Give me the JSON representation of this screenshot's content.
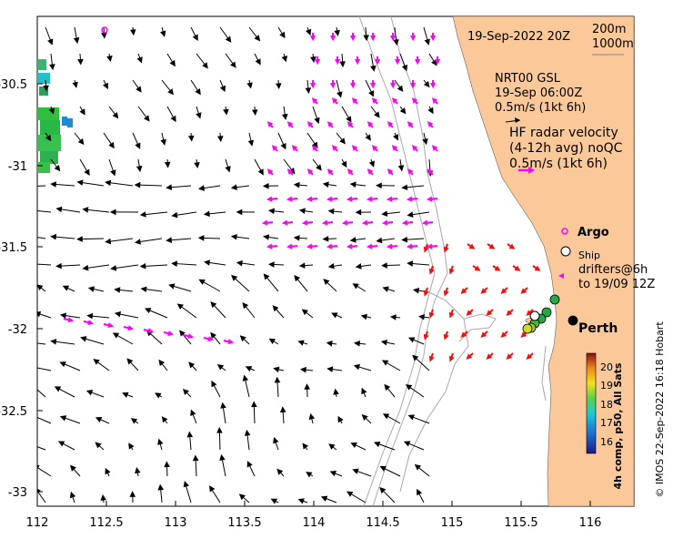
{
  "map": {
    "date_title": "19-Sep-2022 20Z",
    "isobaths": [
      "200m",
      "1000m"
    ],
    "model": {
      "name": "NRT00 GSL",
      "time": "19-Sep 06:00Z",
      "scale": "0.5m/s (1kt 6h)"
    },
    "hf_radar": {
      "title": "HF radar velocity",
      "subtitle": "(4-12h avg) noQC",
      "scale": "0.5m/s (1kt 6h)"
    },
    "markers": {
      "argo": "Argo",
      "ship": "Ship",
      "drifters": "drifters@6h",
      "drifters_time": "to 19/09 12Z"
    },
    "city": "Perth",
    "colorbar": {
      "label": "4h comp, p50, All Sats",
      "ticks": [
        "20",
        "19",
        "18",
        "17",
        "16"
      ]
    },
    "credit": "© IMOS 22-Sep-2022 16:18 Hobart",
    "axes": {
      "x_ticks": [
        "112",
        "112.5",
        "113",
        "113.5",
        "114",
        "114.5",
        "115",
        "115.5",
        "116"
      ],
      "y_ticks": [
        "-30.5",
        "-31",
        "-31.5",
        "-32",
        "-32.5",
        "-33"
      ]
    },
    "colors": {
      "land": "#fbc899",
      "hf_arrow": "#ff00ff",
      "shelf_arrow": "#ee1111",
      "model_arrow": "#000000"
    }
  }
}
